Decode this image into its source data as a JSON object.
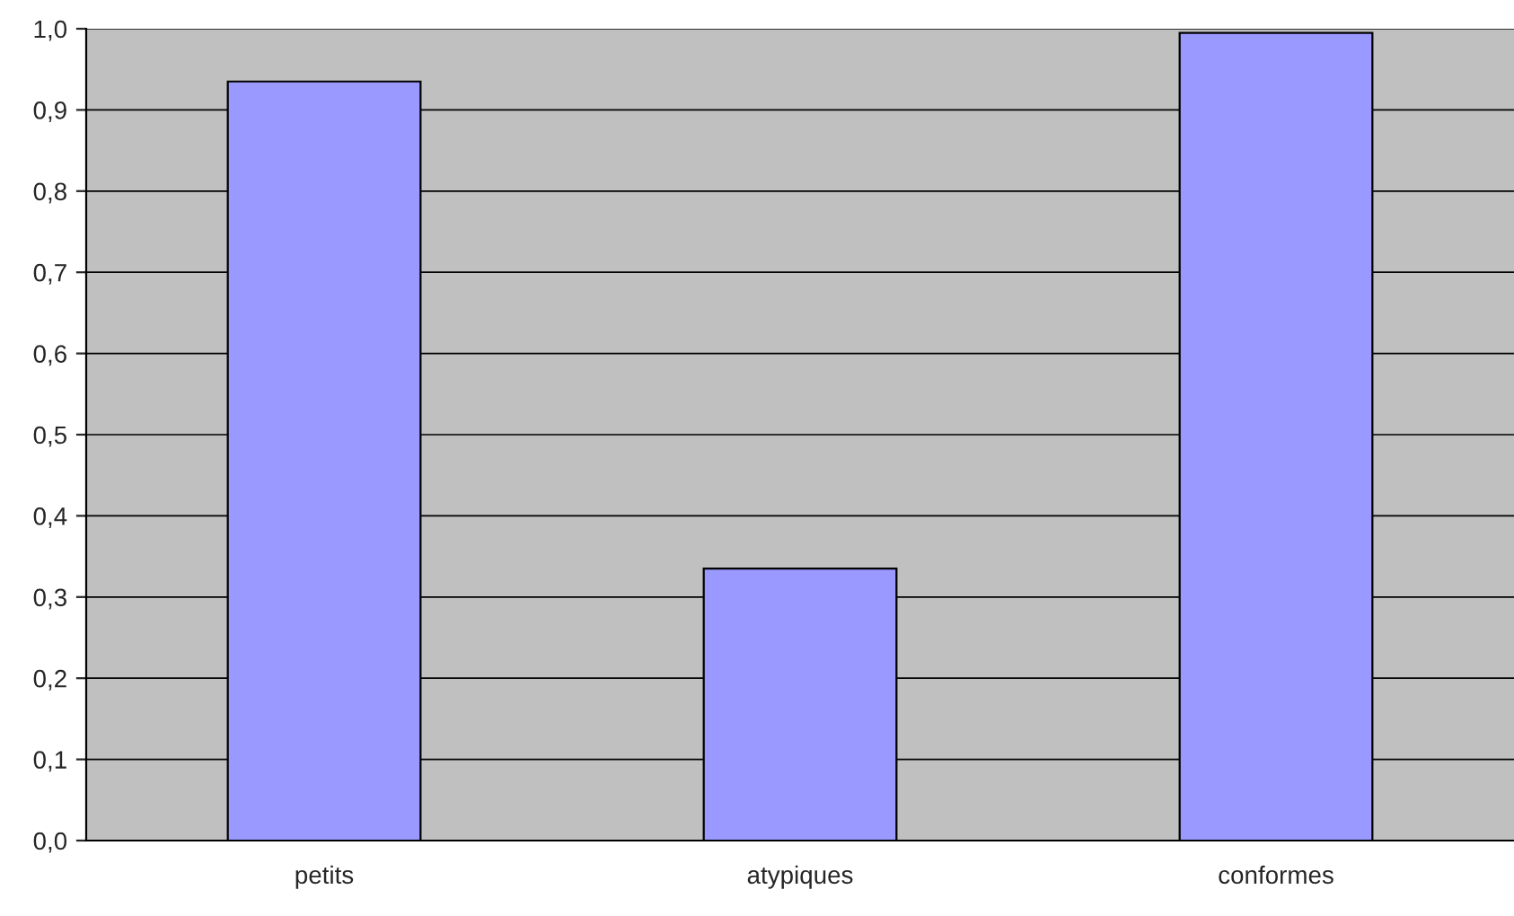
{
  "chart_data": {
    "type": "bar",
    "categories": [
      "petits",
      "atypiques",
      "conformes"
    ],
    "values": [
      0.935,
      0.335,
      0.995
    ],
    "color": "#9999ff",
    "ylim": [
      0,
      1
    ],
    "yticks": [
      {
        "value": 0,
        "label": "0,0"
      },
      {
        "value": 0.1,
        "label": "0,1"
      },
      {
        "value": 0.2,
        "label": "0,2"
      },
      {
        "value": 0.3,
        "label": "0,3"
      },
      {
        "value": 0.4,
        "label": "0,4"
      },
      {
        "value": 0.5,
        "label": "0,5"
      },
      {
        "value": 0.6,
        "label": "0,6"
      },
      {
        "value": 0.7,
        "label": "0,7"
      },
      {
        "value": 0.8,
        "label": "0,8"
      },
      {
        "value": 0.9,
        "label": "0,9"
      },
      {
        "value": 1,
        "label": "1,0"
      }
    ],
    "grid": "y",
    "legend": false
  }
}
